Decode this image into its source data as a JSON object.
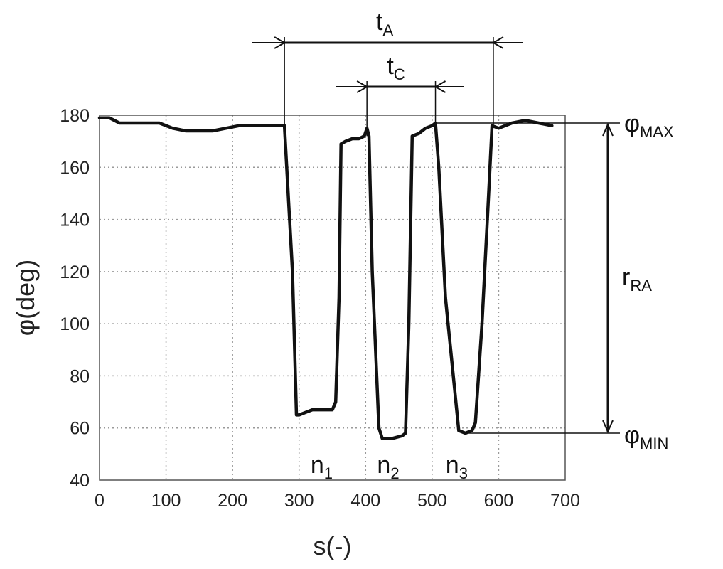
{
  "chart_data": {
    "type": "line",
    "title": "",
    "xlabel": "s(-)",
    "ylabel": "φ(deg)",
    "xlim": [
      0,
      700
    ],
    "ylim": [
      40,
      180
    ],
    "xticks": [
      0,
      100,
      200,
      300,
      400,
      500,
      600,
      700
    ],
    "yticks": [
      40,
      60,
      80,
      100,
      120,
      140,
      160,
      180
    ],
    "grid": true,
    "series": [
      {
        "x": [
          0,
          15,
          30,
          50,
          70,
          90,
          110,
          130,
          150,
          170,
          190,
          210,
          230,
          250,
          270,
          278,
          290,
          296,
          300,
          310,
          320,
          340,
          350,
          355,
          360,
          363,
          370,
          380,
          390,
          398,
          402,
          405,
          410,
          420,
          425,
          440,
          455,
          460,
          465,
          470,
          480,
          490,
          500,
          505,
          510,
          520,
          540,
          550,
          560,
          565,
          575,
          585,
          590,
          600,
          620,
          640,
          660,
          680
        ],
        "y": [
          179,
          179,
          177,
          177,
          177,
          177,
          175,
          174,
          174,
          174,
          175,
          176,
          176,
          176,
          176,
          176,
          120,
          65,
          65,
          66,
          67,
          67,
          67,
          70,
          110,
          169,
          170,
          171,
          171,
          172,
          175,
          172,
          120,
          60,
          56,
          56,
          57,
          58,
          100,
          172,
          173,
          175,
          176,
          177,
          160,
          110,
          59,
          58,
          59,
          62,
          100,
          150,
          176,
          175,
          177,
          178,
          177,
          176
        ]
      }
    ],
    "annotations": {
      "t_a": {
        "main": "t",
        "sub": "A",
        "from_x": 278,
        "to_x": 592
      },
      "t_c": {
        "main": "t",
        "sub": "C",
        "from_x": 402,
        "to_x": 505
      },
      "phi_max": {
        "main": "φ",
        "sub": "MAX",
        "y": 177
      },
      "phi_min": {
        "main": "φ",
        "sub": "MIN",
        "y": 58
      },
      "r_ra": {
        "main": "r",
        "sub": "RA"
      },
      "n1": {
        "main": "n",
        "sub": "1",
        "x": 345
      },
      "n2": {
        "main": "n",
        "sub": "2",
        "x": 445
      },
      "n3": {
        "main": "n",
        "sub": "3",
        "x": 548
      }
    }
  }
}
